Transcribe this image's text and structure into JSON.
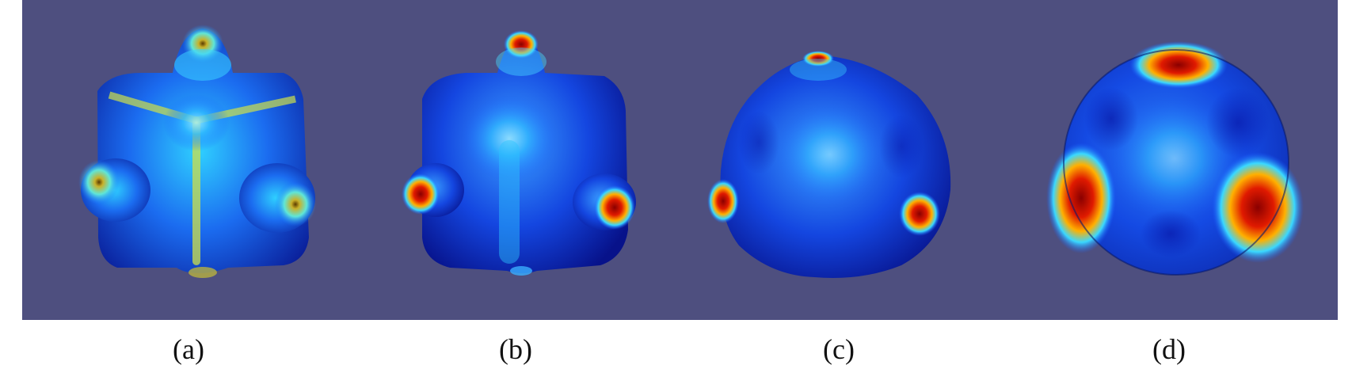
{
  "figure": {
    "panels": [
      {
        "label": "(a)",
        "shape": "cube-with-bumps"
      },
      {
        "label": "(b)",
        "shape": "rounded-cube-with-bumps"
      },
      {
        "label": "(c)",
        "shape": "near-sphere"
      },
      {
        "label": "(d)",
        "shape": "sphere"
      }
    ],
    "colors": {
      "background": "#4e4f7f",
      "colormap": [
        "#0000c8",
        "#0a5cff",
        "#19c6ff",
        "#d8e23a",
        "#ff6a00",
        "#a00000"
      ]
    }
  }
}
